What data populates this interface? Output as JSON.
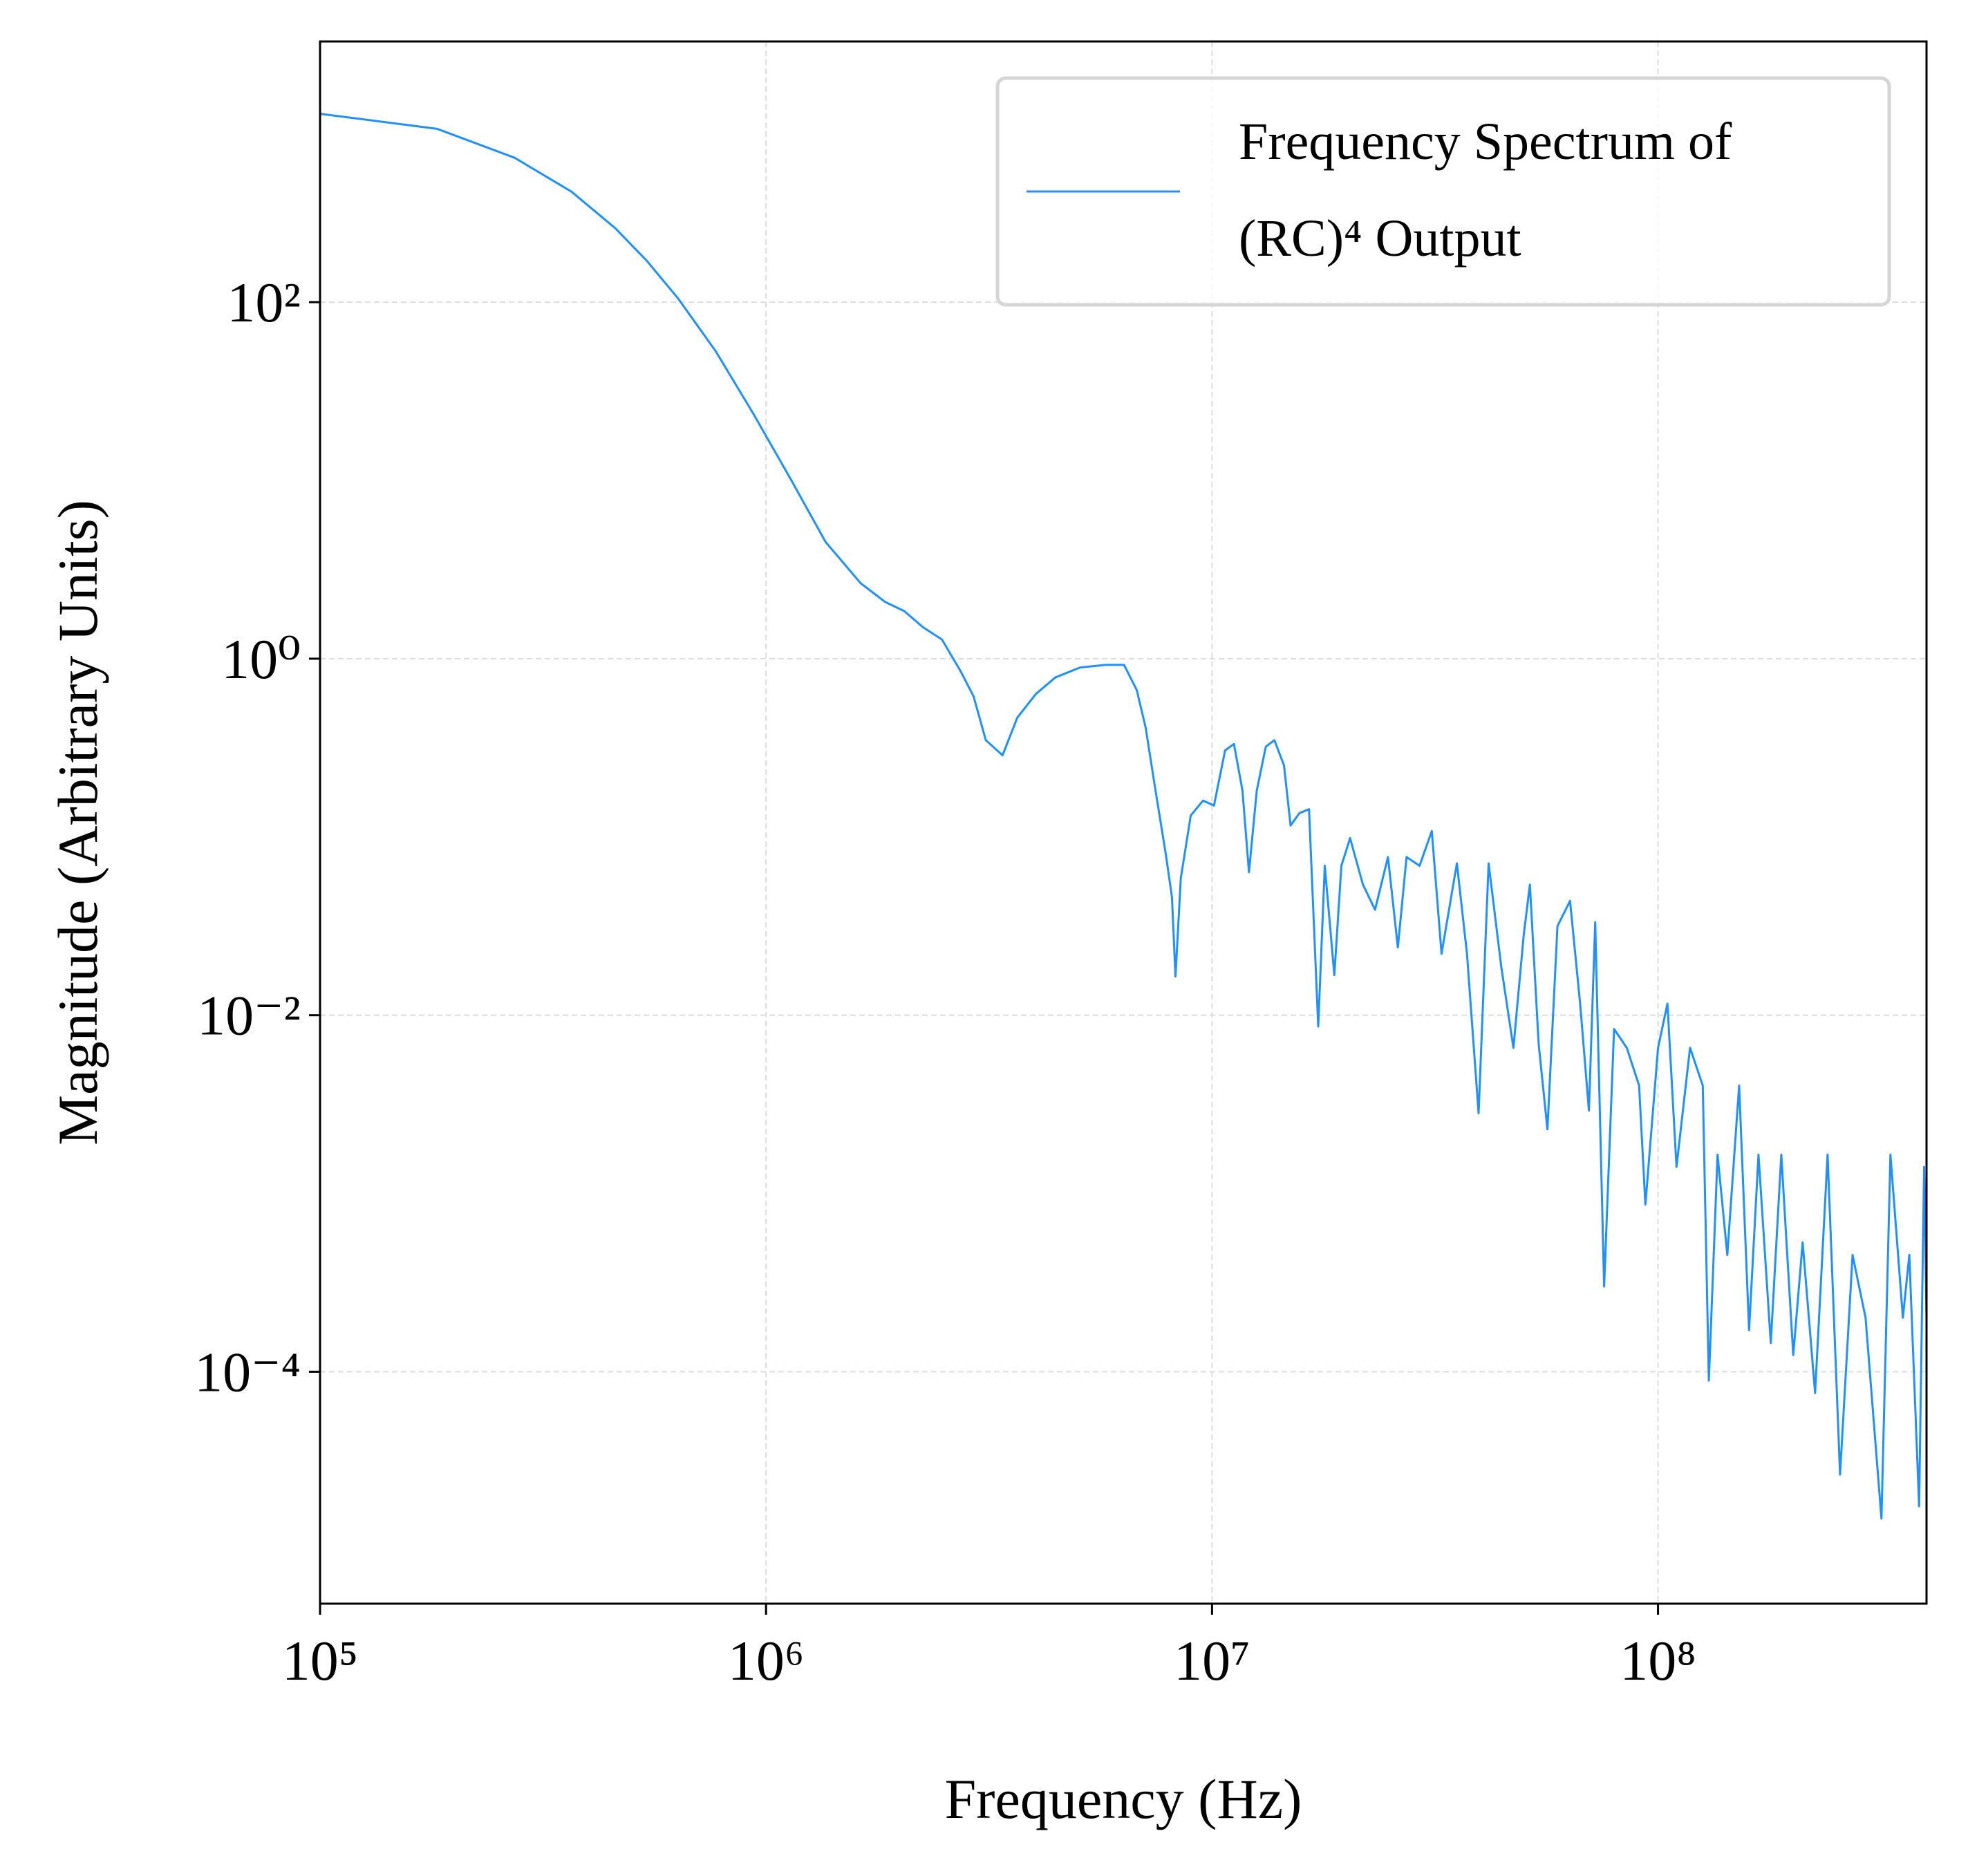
{
  "chart_data": {
    "type": "line",
    "xlabel": "Frequency (Hz)",
    "ylabel": "Magnitude (Arbitrary Units)",
    "x": [
      100000,
      183000,
      273000,
      366000,
      459000,
      540000,
      635000,
      771000,
      937000,
      1140000,
      1360000,
      1630000,
      1850000,
      2040000,
      2250000,
      2480000,
      2730000,
      2920000,
      3110000,
      3390000,
      3660000,
      4030000,
      4450000,
      5060000,
      5770000,
      6350000,
      6780000,
      7100000,
      7470000,
      7870000,
      8130000,
      8280000,
      8510000,
      8960000,
      9550000,
      10100000,
      10700000,
      11200000,
      11700000,
      12100000,
      12600000,
      13200000,
      13800000,
      14500000,
      15000000,
      15700000,
      16500000,
      17300000,
      17900000,
      18800000,
      19500000,
      20400000,
      21800000,
      23200000,
      24800000,
      26100000,
      27300000,
      29200000,
      31100000,
      32700000,
      35400000,
      37300000,
      39600000,
      41700000,
      44500000,
      47400000,
      50000000,
      51600000,
      54000000,
      56500000,
      59500000,
      63500000,
      66900000,
      70000000,
      72300000,
      75700000,
      79700000,
      85100000,
      90700000,
      93700000,
      100000000,
      105000000,
      110000000,
      118000000,
      126000000,
      130000000,
      136000000,
      143000000,
      152000000,
      160000000,
      168000000,
      179000000,
      189000000,
      201000000,
      211000000,
      225000000,
      240000000,
      256000000,
      273000000,
      292000000,
      317000000,
      332000000,
      354000000,
      366000000,
      385000000,
      395000000,
      400000000
    ],
    "series": [
      {
        "name": "Frequency Spectrum of (RC)⁴ Output",
        "color": "#1e90ff",
        "values": [
          1140,
          938,
          646,
          417,
          260,
          171,
          105,
          53.1,
          23.6,
          10.0,
          4.52,
          2.65,
          2.08,
          1.85,
          1.5,
          1.28,
          0.851,
          0.615,
          0.349,
          0.287,
          0.467,
          0.635,
          0.784,
          0.893,
          0.923,
          0.923,
          0.667,
          0.41,
          0.182,
          0.081,
          0.0459,
          0.0165,
          0.0586,
          0.132,
          0.16,
          0.15,
          0.306,
          0.332,
          0.182,
          0.0635,
          0.182,
          0.321,
          0.349,
          0.252,
          0.116,
          0.136,
          0.143,
          0.00865,
          0.0689,
          0.0168,
          0.0689,
          0.0984,
          0.054,
          0.0391,
          0.0771,
          0.024,
          0.0771,
          0.0689,
          0.108,
          0.0221,
          0.0711,
          0.0221,
          0.00282,
          0.0711,
          0.0188,
          0.00656,
          0.0282,
          0.054,
          0.00689,
          0.00229,
          0.0316,
          0.0438,
          0.0116,
          0.00292,
          0.0332,
          0.000301,
          0.00837,
          0.00656,
          0.00403,
          0.000865,
          0.00656,
          0.0116,
          0.00141,
          0.00656,
          0.00403,
          8.93e-05,
          0.00165,
          0.000452,
          0.00403,
          0.000171,
          0.00165,
          0.000145,
          0.00165,
          0.000124,
          0.000531,
          7.59e-05,
          0.00165,
          2.65e-05,
          0.000452,
          0.000201,
          1.5e-05,
          0.00165,
          0.000201,
          0.000452,
          1.76e-05,
          0.00141,
          0.000201
        ]
      }
    ],
    "xscale": "log",
    "yscale": "log",
    "xlim": [
      100000,
      400000000
    ],
    "ylim": [
      5e-06,
      2900
    ],
    "xticks": [
      {
        "value": 100000,
        "label": "10⁵"
      },
      {
        "value": 1000000,
        "label": "10⁶"
      },
      {
        "value": 10000000,
        "label": "10⁷"
      },
      {
        "value": 100000000,
        "label": "10⁸"
      }
    ],
    "yticks": [
      {
        "value": 0.0001,
        "label": "10⁻⁴"
      },
      {
        "value": 0.01,
        "label": "10⁻²"
      },
      {
        "value": 1,
        "label": "10⁰"
      },
      {
        "value": 100,
        "label": "10²"
      }
    ],
    "grid": true,
    "legend": "upper right"
  }
}
